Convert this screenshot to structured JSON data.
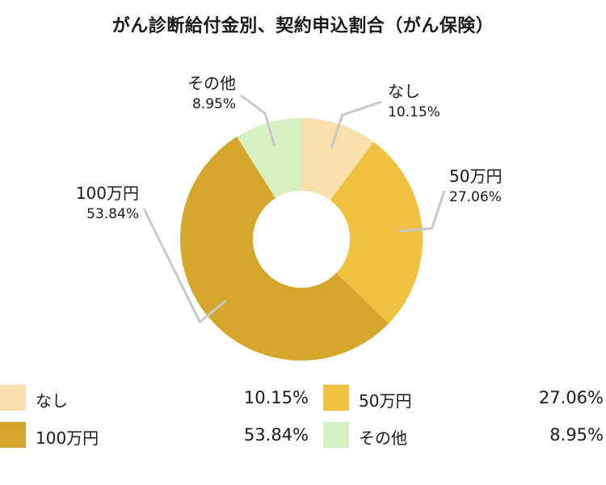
{
  "title": "がん診断給付金別、契約申込割合（がん保険）",
  "chart_data": {
    "type": "pie",
    "title": "がん診断給付金別、契約申込割合（がん保険）",
    "categories": [
      "なし",
      "50万円",
      "100万円",
      "その他"
    ],
    "values": [
      10.15,
      27.06,
      53.84,
      8.95
    ],
    "value_labels": [
      "10.15%",
      "27.06%",
      "53.84%",
      "8.95%"
    ],
    "colors": [
      "#f7e0ab",
      "#f0c13e",
      "#d4a72a",
      "#d6f0c4"
    ],
    "unit": "%"
  },
  "legend": [
    {
      "label": "なし",
      "value": "10.15%",
      "color": "#f7e0ab"
    },
    {
      "label": "50万円",
      "value": "27.06%",
      "color": "#f0c13e"
    },
    {
      "label": "100万円",
      "value": "53.84%",
      "color": "#d4a72a"
    },
    {
      "label": "その他",
      "value": "8.95%",
      "color": "#d6f0c4"
    }
  ]
}
